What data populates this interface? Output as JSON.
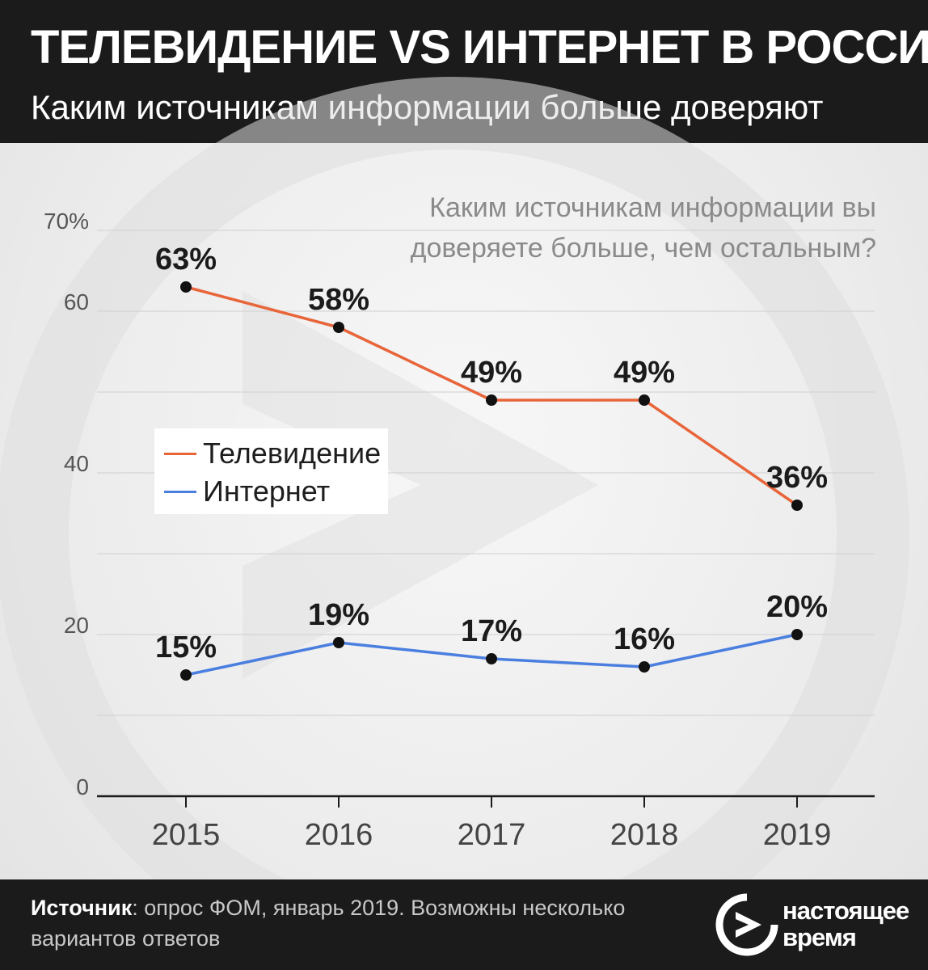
{
  "header": {
    "title": "ТЕЛЕВИДЕНИЕ VS ИНТЕРНЕТ В РОССИИ",
    "subtitle": "Каким источникам информации больше доверяют"
  },
  "question": "Каким источникам информации вы доверяете больше, чем остальным?",
  "chart_data": {
    "type": "line",
    "x": [
      "2015",
      "2016",
      "2017",
      "2018",
      "2019"
    ],
    "ylim": [
      0,
      70
    ],
    "y_ticks": [
      0,
      10,
      20,
      30,
      40,
      50,
      60,
      70
    ],
    "y_tick_labels": {
      "0": "0",
      "20": "20",
      "40": "40",
      "60": "60",
      "70": "70%"
    },
    "grid": true,
    "legend_position": "left",
    "series": [
      {
        "name": "Телевидение",
        "values": [
          63,
          58,
          49,
          49,
          36
        ],
        "labels": [
          "63%",
          "58%",
          "49%",
          "49%",
          "36%"
        ],
        "color": "#e8653a"
      },
      {
        "name": "Интернет",
        "values": [
          15,
          19,
          17,
          16,
          20
        ],
        "labels": [
          "15%",
          "19%",
          "17%",
          "16%",
          "20%"
        ],
        "color": "#4a7fe0"
      }
    ]
  },
  "footer": {
    "source_label": "Источник",
    "source_text": ": опрос ФОМ, январь 2019. Возможны несколько вариантов ответов",
    "logo_line1": "настоящее",
    "logo_line2": "время",
    "logo_icon": "play-arrow-circle-icon"
  },
  "colors": {
    "background_dark": "#1b1b1b",
    "tv": "#e8653a",
    "internet": "#4a7fe0"
  }
}
